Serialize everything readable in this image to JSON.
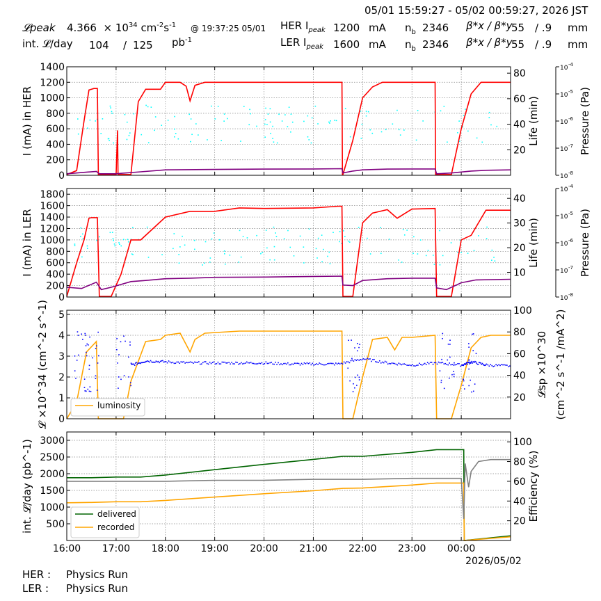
{
  "header": {
    "time_range": "05/01 15:59:27 - 05/02 00:59:27, 2026 JST",
    "lpeak_label": "𝓛peak",
    "lpeak_value": "4.366",
    "lpeak_exponent": "34",
    "lpeak_unit_base": "cm",
    "lpeak_unit_exp1": "-2",
    "lpeak_unit_mid": "s",
    "lpeak_unit_exp2": "-1",
    "lpeak_time": "@ 19:37:25 05/01",
    "intl_label": "int. 𝓛/day",
    "intl_delivered": "104",
    "intl_sep": "/",
    "intl_recorded": "125",
    "intl_unit_base": "pb",
    "intl_unit_exp": "-1",
    "her_label": "HER I",
    "her_sub": "peak",
    "her_value": "1200",
    "her_unit": "mA",
    "ler_label": "LER I",
    "ler_sub": "peak",
    "ler_value": "1600",
    "ler_unit": "mA",
    "nb_label": "n",
    "nb_sub": "b",
    "her_nb": "2346",
    "ler_nb": "2346",
    "beta_label": "β*x / β*y",
    "her_betax": "55",
    "her_betay": "/ .9",
    "ler_betax": "55",
    "ler_betay": "/ .9",
    "beta_unit": "mm"
  },
  "status": {
    "her_label": "HER :",
    "her_value": "Physics Run",
    "ler_label": "LER :",
    "ler_value": "Physics Run"
  },
  "colors": {
    "current": "#ff0000",
    "life": "#00ffff",
    "pressure": "#800080",
    "luminosity": "#ffa500",
    "specific": "#0000ff",
    "delivered": "#006400",
    "recorded": "#ffa500",
    "efficiency": "#808080",
    "grid": "#888888"
  },
  "chart_data": [
    {
      "type": "line",
      "ylabel": "I (mA) in HER",
      "ylim": [
        0,
        1400
      ],
      "yticks": [
        "0",
        "200",
        "400",
        "600",
        "800",
        "1000",
        "1200",
        "1400"
      ],
      "y2label": "Life (min)",
      "y2lim": [
        0,
        85
      ],
      "y2ticks": [
        "20",
        "40",
        "60",
        "80"
      ],
      "y3label": "Pressure (Pa)",
      "y3ticks": [
        "10",
        "10",
        "10",
        "10",
        "10",
        "10",
        "10"
      ],
      "y3exps": [
        "-4",
        "-5",
        "-6",
        "-7",
        "-8"
      ],
      "grid": true,
      "series": [
        {
          "key": "current",
          "x": [
            16.0,
            16.2,
            16.35,
            16.45,
            16.55,
            16.62,
            16.64,
            16.66,
            17.0,
            17.03,
            17.04,
            17.05,
            17.3,
            17.45,
            17.6,
            17.9,
            18.0,
            18.3,
            18.42,
            18.5,
            18.6,
            18.8,
            19.5,
            20.0,
            21.0,
            21.58,
            21.59,
            21.6,
            21.8,
            22.0,
            22.2,
            22.4,
            22.6,
            23.0,
            23.47,
            23.48,
            23.5,
            23.8,
            24.0,
            24.2,
            24.4,
            24.6,
            25.0
          ],
          "y": [
            10,
            60,
            700,
            1100,
            1120,
            1120,
            10,
            10,
            10,
            580,
            10,
            10,
            10,
            950,
            1110,
            1110,
            1200,
            1200,
            1150,
            960,
            1160,
            1200,
            1200,
            1200,
            1200,
            1200,
            10,
            10,
            450,
            1000,
            1140,
            1200,
            1200,
            1200,
            1200,
            10,
            10,
            10,
            600,
            1050,
            1200,
            1200,
            1200
          ]
        },
        {
          "key": "pressure",
          "x": [
            16.0,
            16.6,
            16.66,
            17.0,
            17.1,
            17.5,
            18.0,
            19.0,
            20.0,
            21.0,
            21.58,
            21.6,
            21.8,
            22.0,
            22.5,
            23.0,
            23.47,
            23.5,
            23.8,
            24.2,
            24.5,
            25.0
          ],
          "y": [
            20,
            50,
            20,
            20,
            25,
            45,
            70,
            75,
            80,
            82,
            85,
            30,
            55,
            70,
            80,
            82,
            82,
            20,
            30,
            55,
            65,
            70
          ]
        }
      ]
    },
    {
      "type": "line",
      "ylabel": "I (mA) in LER",
      "ylim": [
        0,
        1900
      ],
      "yticks": [
        "0",
        "200",
        "400",
        "600",
        "800",
        "1000",
        "1200",
        "1400",
        "1600",
        "1800"
      ],
      "y2label": "Life (min)",
      "y2lim": [
        0,
        44
      ],
      "y2ticks": [
        "10",
        "20",
        "30",
        "40"
      ],
      "y3label": "Pressure (Pa)",
      "grid": true,
      "series": [
        {
          "key": "current",
          "x": [
            16.0,
            16.2,
            16.35,
            16.45,
            16.5,
            16.62,
            16.66,
            16.9,
            17.1,
            17.3,
            17.5,
            18.0,
            18.5,
            19.0,
            19.5,
            20.0,
            21.0,
            21.5,
            21.58,
            21.6,
            21.8,
            22.0,
            22.2,
            22.5,
            22.7,
            23.0,
            23.47,
            23.5,
            23.8,
            24.0,
            24.2,
            24.5,
            25.0
          ],
          "y": [
            10,
            600,
            1000,
            1380,
            1390,
            1390,
            10,
            10,
            400,
            1000,
            1000,
            1400,
            1500,
            1500,
            1560,
            1550,
            1560,
            1590,
            1590,
            10,
            10,
            1300,
            1470,
            1530,
            1380,
            1540,
            1550,
            10,
            10,
            1000,
            1080,
            1520,
            1520
          ]
        },
        {
          "key": "pressure",
          "x": [
            16.0,
            16.3,
            16.6,
            16.7,
            16.9,
            17.3,
            17.6,
            18.0,
            18.5,
            19.0,
            20.0,
            21.0,
            21.58,
            21.6,
            21.8,
            22.0,
            22.5,
            23.0,
            23.47,
            23.5,
            23.7,
            24.0,
            24.3,
            25.0
          ],
          "y": [
            170,
            150,
            260,
            130,
            170,
            270,
            290,
            320,
            330,
            345,
            350,
            360,
            365,
            210,
            200,
            290,
            320,
            330,
            330,
            160,
            130,
            250,
            300,
            310
          ]
        }
      ]
    },
    {
      "type": "line",
      "ylabel": "𝓛 ×10^34 (cm^-2 s^-1)",
      "ylim": [
        0,
        5.2
      ],
      "yticks": [
        "0",
        "1",
        "2",
        "3",
        "4",
        "5"
      ],
      "y2label": "𝓛sp ×10^30",
      "y2label2": "(cm^-2 s^-1 /mA^2)",
      "y2ticks": [
        "20",
        "40",
        "60",
        "80",
        "100"
      ],
      "legend": [
        "luminosity"
      ],
      "grid": true,
      "series": [
        {
          "key": "luminosity",
          "name": "luminosity",
          "x": [
            16.0,
            16.2,
            16.4,
            16.6,
            16.64,
            16.66,
            17.0,
            17.15,
            17.3,
            17.6,
            17.9,
            18.0,
            18.3,
            18.5,
            18.6,
            18.8,
            19.5,
            20.0,
            21.0,
            21.5,
            21.58,
            21.6,
            21.8,
            22.0,
            22.2,
            22.5,
            22.65,
            22.8,
            23.0,
            23.47,
            23.5,
            23.8,
            24.0,
            24.2,
            24.4,
            24.6,
            25.0
          ],
          "y": [
            0,
            0.8,
            3.2,
            3.7,
            0,
            0,
            0,
            0,
            1.8,
            3.7,
            3.8,
            4.0,
            4.1,
            3.2,
            3.8,
            4.1,
            4.2,
            4.2,
            4.2,
            4.2,
            4.2,
            0,
            0,
            2.0,
            3.8,
            3.9,
            3.3,
            3.9,
            3.9,
            4.0,
            0,
            0,
            1.6,
            3.4,
            3.9,
            4.0,
            4.0
          ]
        },
        {
          "key": "specific",
          "x": [
            17.3,
            17.6,
            18.0,
            18.5,
            19.0,
            19.5,
            20.0,
            20.5,
            21.0,
            21.5,
            22.0,
            22.5,
            23.0,
            23.5,
            24.0,
            24.2,
            24.5,
            25.0
          ],
          "y": [
            2.6,
            2.8,
            2.75,
            2.7,
            2.7,
            2.7,
            2.7,
            2.65,
            2.65,
            2.65,
            2.9,
            2.7,
            2.6,
            2.7,
            2.6,
            2.75,
            2.6,
            2.55
          ]
        }
      ]
    },
    {
      "type": "line",
      "ylabel": "int. 𝓛/day (pb^-1)",
      "ylim": [
        0,
        3250
      ],
      "yticks": [
        "500",
        "1000",
        "1500",
        "2000",
        "2500",
        "3000"
      ],
      "y2label": "Efficiency (%)",
      "y2lim": [
        0,
        110
      ],
      "y2ticks": [
        "20",
        "40",
        "60",
        "80",
        "100"
      ],
      "legend": [
        "delivered",
        "recorded"
      ],
      "xticks": [
        "16:00",
        "17:00",
        "18:00",
        "19:00",
        "20:00",
        "21:00",
        "22:00",
        "23:00",
        "00:00"
      ],
      "xsub": "2026/05/02",
      "grid": true,
      "series": [
        {
          "key": "delivered",
          "name": "delivered",
          "x": [
            16.0,
            16.5,
            17.0,
            17.5,
            18.0,
            19.0,
            20.0,
            21.0,
            21.6,
            22.0,
            23.0,
            23.5,
            24.0,
            24.05,
            24.06,
            25.0
          ],
          "y": [
            1880,
            1880,
            1900,
            1900,
            1960,
            2120,
            2280,
            2430,
            2520,
            2520,
            2640,
            2720,
            2720,
            2720,
            0,
            140
          ]
        },
        {
          "key": "recorded",
          "name": "recorded",
          "x": [
            16.0,
            16.5,
            17.0,
            17.5,
            18.0,
            19.0,
            20.0,
            21.0,
            21.6,
            22.0,
            23.0,
            23.5,
            24.0,
            24.05,
            24.06,
            25.0
          ],
          "y": [
            1130,
            1140,
            1160,
            1160,
            1200,
            1300,
            1400,
            1490,
            1560,
            1570,
            1660,
            1720,
            1720,
            1720,
            0,
            110
          ]
        },
        {
          "key": "efficiency",
          "x": [
            16.0,
            17.0,
            18.0,
            19.0,
            20.0,
            21.0,
            22.0,
            23.0,
            24.0,
            24.05,
            24.08,
            24.15,
            24.2,
            24.35,
            24.6,
            25.0
          ],
          "y": [
            60,
            60,
            60,
            61,
            61,
            62,
            62,
            63,
            63,
            22,
            78,
            54,
            70,
            80,
            82,
            82
          ]
        }
      ]
    }
  ]
}
